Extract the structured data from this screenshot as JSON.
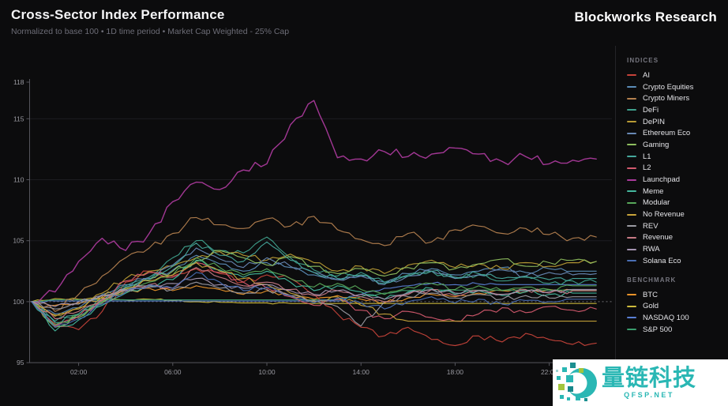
{
  "brand": "Blockworks Research",
  "legend": {
    "indices_label": "INDICES",
    "benchmark_label": "BENCHMARK"
  },
  "watermark": {
    "name": "量链科技",
    "site": "QFSP.NET",
    "teal": "#2ab7b4",
    "green": "#a3c53d"
  },
  "colors": {
    "background": "#0c0c0d",
    "axis": "#55555c",
    "grid": "#1d1d21",
    "baseline": "#8d8d93",
    "tick_label": "#9a9aa1",
    "panel_border": "#242428"
  },
  "chart_data": {
    "type": "line",
    "title": "Cross-Sector Index Performance",
    "subtitle": "Normalized to base 100 • 1D time period • Market Cap Weighted - 25% Cap",
    "x_tick_labels": [
      "02:00",
      "06:00",
      "10:00",
      "14:00",
      "18:00",
      "22:00"
    ],
    "x_tick_hours": [
      2,
      6,
      10,
      14,
      18,
      22
    ],
    "x_range_hours": [
      0,
      24
    ],
    "x_step_hours": 1,
    "y_ticks": [
      95,
      100,
      105,
      110,
      115,
      118
    ],
    "y_range": [
      95,
      118
    ],
    "baseline_value": 100,
    "grid": "horizontal-faint",
    "legend_position": "right",
    "series": [
      {
        "name": "AI",
        "group": "indices",
        "color": "#c7433a",
        "jitter": 0.16,
        "values": [
          100,
          98.2,
          97.7,
          99.2,
          101.6,
          102.5,
          102.1,
          102.7,
          102.3,
          101.6,
          102.2,
          101.9,
          100.6,
          99.0,
          97.9,
          97.2,
          97.9,
          96.9,
          96.4,
          97.2,
          96.7,
          97.4,
          96.9,
          96.5,
          96.6
        ]
      },
      {
        "name": "Crypto Equities",
        "group": "indices",
        "color": "#5b8db8",
        "jitter": 0.13,
        "values": [
          100,
          99.0,
          99.5,
          100.6,
          101.4,
          102.0,
          102.6,
          103.8,
          103.1,
          102.5,
          103.2,
          102.8,
          102.2,
          101.8,
          102.1,
          101.6,
          102.3,
          102.7,
          102.2,
          102.5,
          102.8,
          102.4,
          102.7,
          102.5,
          102.5
        ]
      },
      {
        "name": "Crypto Miners",
        "group": "indices",
        "color": "#b5814f",
        "jitter": 0.2,
        "values": [
          100,
          99.2,
          100.6,
          102.1,
          103.6,
          104.4,
          105.6,
          106.9,
          106.3,
          106.0,
          106.8,
          106.2,
          107.0,
          105.9,
          105.1,
          104.6,
          105.6,
          104.9,
          105.9,
          106.2,
          105.6,
          106.0,
          105.5,
          105.2,
          105.3
        ]
      },
      {
        "name": "DeFi",
        "group": "indices",
        "color": "#3fa08c",
        "jitter": 0.15,
        "values": [
          100,
          98.4,
          99.0,
          100.2,
          101.3,
          102.0,
          103.6,
          105.0,
          104.2,
          104.0,
          105.3,
          103.6,
          102.6,
          102.1,
          102.4,
          101.6,
          102.2,
          102.5,
          101.9,
          102.2,
          101.7,
          102.0,
          101.5,
          101.7,
          101.6
        ]
      },
      {
        "name": "DePIN",
        "group": "indices",
        "color": "#b99b35",
        "jitter": 0.15,
        "values": [
          100,
          98.8,
          99.5,
          100.7,
          101.9,
          102.5,
          102.9,
          103.6,
          104.1,
          103.8,
          103.4,
          103.9,
          103.2,
          102.5,
          102.9,
          102.3,
          103.0,
          103.4,
          102.8,
          103.1,
          102.7,
          103.2,
          102.9,
          103.2,
          103.3
        ]
      },
      {
        "name": "Ethereum Eco",
        "group": "indices",
        "color": "#6889b5",
        "jitter": 0.14,
        "values": [
          100,
          98.1,
          98.8,
          100.0,
          101.2,
          101.9,
          103.0,
          104.4,
          103.5,
          102.8,
          103.6,
          102.9,
          102.4,
          101.8,
          102.1,
          101.4,
          102.1,
          102.5,
          101.9,
          102.2,
          102.6,
          102.1,
          102.4,
          102.2,
          102.3
        ]
      },
      {
        "name": "Gaming",
        "group": "indices",
        "color": "#8fbf5f",
        "jitter": 0.15,
        "values": [
          100,
          97.9,
          98.7,
          99.9,
          101.1,
          101.8,
          102.5,
          103.3,
          104.2,
          103.6,
          103.0,
          103.7,
          102.9,
          102.3,
          102.7,
          102.1,
          102.8,
          103.2,
          102.7,
          103.1,
          103.5,
          102.9,
          103.2,
          103.4,
          103.3
        ]
      },
      {
        "name": "L1",
        "group": "indices",
        "color": "#46a89c",
        "jitter": 0.14,
        "values": [
          100,
          98.3,
          99.0,
          100.1,
          101.2,
          101.8,
          102.9,
          104.8,
          103.8,
          103.3,
          104.9,
          103.4,
          102.4,
          101.9,
          102.2,
          101.5,
          102.1,
          102.5,
          102.0,
          102.3,
          101.9,
          102.1,
          101.8,
          101.9,
          101.9
        ]
      },
      {
        "name": "L2",
        "group": "indices",
        "color": "#d35a6e",
        "jitter": 0.15,
        "values": [
          100,
          98.0,
          98.8,
          100.1,
          101.7,
          102.4,
          102.0,
          103.2,
          102.4,
          101.6,
          101.1,
          100.4,
          99.7,
          100.2,
          99.3,
          98.6,
          99.2,
          98.7,
          98.4,
          99.0,
          99.5,
          99.1,
          99.6,
          99.3,
          99.4
        ]
      },
      {
        "name": "Launchpad",
        "group": "indices",
        "color": "#ab3a9c",
        "jitter": 0.25,
        "values": [
          100,
          100.8,
          103.3,
          105.2,
          104.2,
          105.6,
          108.2,
          109.8,
          109.2,
          110.8,
          111.3,
          114.5,
          116.5,
          111.8,
          111.7,
          112.3,
          111.9,
          112.1,
          112.6,
          112.1,
          111.5,
          111.9,
          111.3,
          111.6,
          111.7
        ]
      },
      {
        "name": "Meme",
        "group": "indices",
        "color": "#45b89e",
        "jitter": 0.14,
        "values": [
          100,
          97.6,
          98.5,
          99.7,
          100.7,
          101.3,
          101.8,
          103.4,
          102.6,
          102.0,
          102.5,
          101.6,
          100.9,
          101.3,
          100.8,
          100.2,
          100.8,
          101.1,
          100.6,
          100.9,
          100.5,
          100.8,
          100.6,
          100.7,
          100.7
        ]
      },
      {
        "name": "Modular",
        "group": "indices",
        "color": "#58a85a",
        "jitter": 0.14,
        "values": [
          100,
          98.1,
          98.9,
          100.0,
          101.0,
          101.6,
          102.2,
          103.6,
          102.8,
          102.2,
          102.7,
          101.9,
          101.2,
          101.5,
          101.0,
          100.6,
          101.2,
          101.5,
          101.0,
          101.3,
          100.9,
          101.2,
          101.0,
          101.3,
          101.3
        ]
      },
      {
        "name": "No Revenue",
        "group": "indices",
        "color": "#c9a43a",
        "jitter": 0.15,
        "values": [
          100,
          98.9,
          99.4,
          100.4,
          101.1,
          101.7,
          102.2,
          103.2,
          102.5,
          101.9,
          101.4,
          100.7,
          100.0,
          100.4,
          99.7,
          99.0,
          98.4,
          98.4,
          98.4,
          98.4,
          98.4,
          98.4,
          98.4,
          98.4,
          98.4
        ]
      },
      {
        "name": "REV",
        "group": "indices",
        "color": "#9b9ba3",
        "jitter": 0.14,
        "values": [
          100,
          99.4,
          99.8,
          100.5,
          101.0,
          101.3,
          101.0,
          101.6,
          101.1,
          100.7,
          101.0,
          100.5,
          100.1,
          99.6,
          98.0,
          100.0,
          100.4,
          100.7,
          100.3,
          100.6,
          100.2,
          100.5,
          100.3,
          100.4,
          100.4
        ]
      },
      {
        "name": "Revenue",
        "group": "indices",
        "color": "#c77a85",
        "jitter": 0.13,
        "values": [
          100,
          98.6,
          99.2,
          100.2,
          100.9,
          101.4,
          101.1,
          102.8,
          102.0,
          101.3,
          101.6,
          101.0,
          100.5,
          100.9,
          100.4,
          100.0,
          100.6,
          101.0,
          100.5,
          100.9,
          100.6,
          101.0,
          100.7,
          100.9,
          100.9
        ]
      },
      {
        "name": "RWA",
        "group": "indices",
        "color": "#a393b0",
        "jitter": 0.12,
        "values": [
          100,
          99.6,
          100.0,
          100.5,
          100.9,
          101.2,
          101.5,
          101.9,
          101.4,
          101.1,
          101.4,
          100.9,
          100.6,
          100.9,
          100.6,
          100.2,
          100.7,
          101.0,
          100.7,
          100.9,
          100.6,
          100.9,
          100.8,
          101.0,
          101.0
        ]
      },
      {
        "name": "Solana Eco",
        "group": "indices",
        "color": "#4a6fb5",
        "jitter": 0.14,
        "values": [
          100,
          97.9,
          98.6,
          99.8,
          100.8,
          101.4,
          101.1,
          102.4,
          101.6,
          100.9,
          101.2,
          100.5,
          99.9,
          100.3,
          99.9,
          99.4,
          100.0,
          100.4,
          99.9,
          100.2,
          99.8,
          100.1,
          100.0,
          100.2,
          100.2
        ]
      },
      {
        "name": "BTC",
        "group": "benchmark",
        "color": "#e8922a",
        "jitter": 0.1,
        "values": [
          100,
          99.7,
          99.9,
          100.3,
          100.8,
          101.1,
          100.9,
          101.3,
          101.0,
          100.6,
          100.9,
          100.5,
          100.2,
          100.5,
          100.2,
          99.9,
          100.3,
          100.6,
          100.4,
          100.7,
          100.9,
          100.8,
          101.0,
          100.9,
          100.9
        ]
      },
      {
        "name": "Gold",
        "group": "benchmark",
        "color": "#cdbb3c",
        "jitter": 0.05,
        "values": [
          100,
          100.25,
          100.2,
          100.3,
          100.15,
          100.2,
          100.1,
          100.0,
          99.95,
          99.9,
          99.9,
          99.85,
          99.85,
          99.85,
          99.85,
          99.85,
          99.85,
          99.85,
          99.85,
          99.85,
          99.85,
          99.85,
          99.85,
          99.85,
          99.85
        ]
      },
      {
        "name": "NASDAQ 100",
        "group": "benchmark",
        "color": "#5a7fd4",
        "jitter": 0.08,
        "values": [
          100,
          100.05,
          100.05,
          100.05,
          100.05,
          100.05,
          100.05,
          100.05,
          100.05,
          100.05,
          100.05,
          100.05,
          100.05,
          100.05,
          100.6,
          101.1,
          101.3,
          101.5,
          101.4,
          101.45,
          101.4,
          101.4,
          101.4,
          101.4,
          101.4
        ]
      },
      {
        "name": "S&P 500",
        "group": "benchmark",
        "color": "#3a9d6e",
        "jitter": 0.06,
        "values": [
          100,
          100.15,
          100.15,
          100.15,
          100.15,
          100.15,
          100.15,
          100.15,
          100.15,
          100.15,
          100.15,
          100.15,
          100.15,
          100.15,
          100.4,
          100.7,
          100.9,
          101.0,
          100.95,
          100.95,
          100.95,
          100.95,
          100.95,
          100.95,
          100.95
        ]
      }
    ]
  }
}
